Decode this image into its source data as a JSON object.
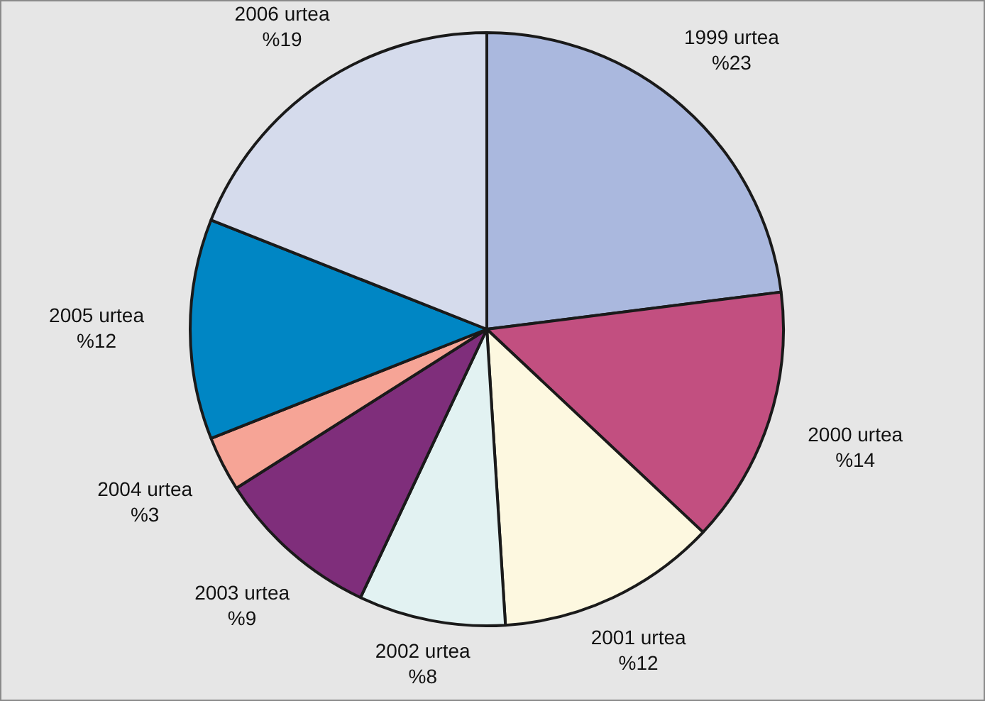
{
  "chart_data": {
    "type": "pie",
    "categories": [
      "1999 urtea",
      "2000 urtea",
      "2001 urtea",
      "2002 urtea",
      "2003 urtea",
      "2004 urtea",
      "2005 urtea",
      "2006 urtea"
    ],
    "values": [
      23,
      14,
      12,
      8,
      9,
      3,
      12,
      19
    ],
    "value_labels": [
      "%23",
      "%14",
      "%12",
      "%8",
      "%9",
      "%3",
      "%12",
      "%19"
    ],
    "colors": [
      "#aab8de",
      "#c24f80",
      "#fdf8e0",
      "#e2f2f2",
      "#7f2e7b",
      "#f6a496",
      "#0086c4",
      "#d5dbec"
    ],
    "legend": false
  }
}
